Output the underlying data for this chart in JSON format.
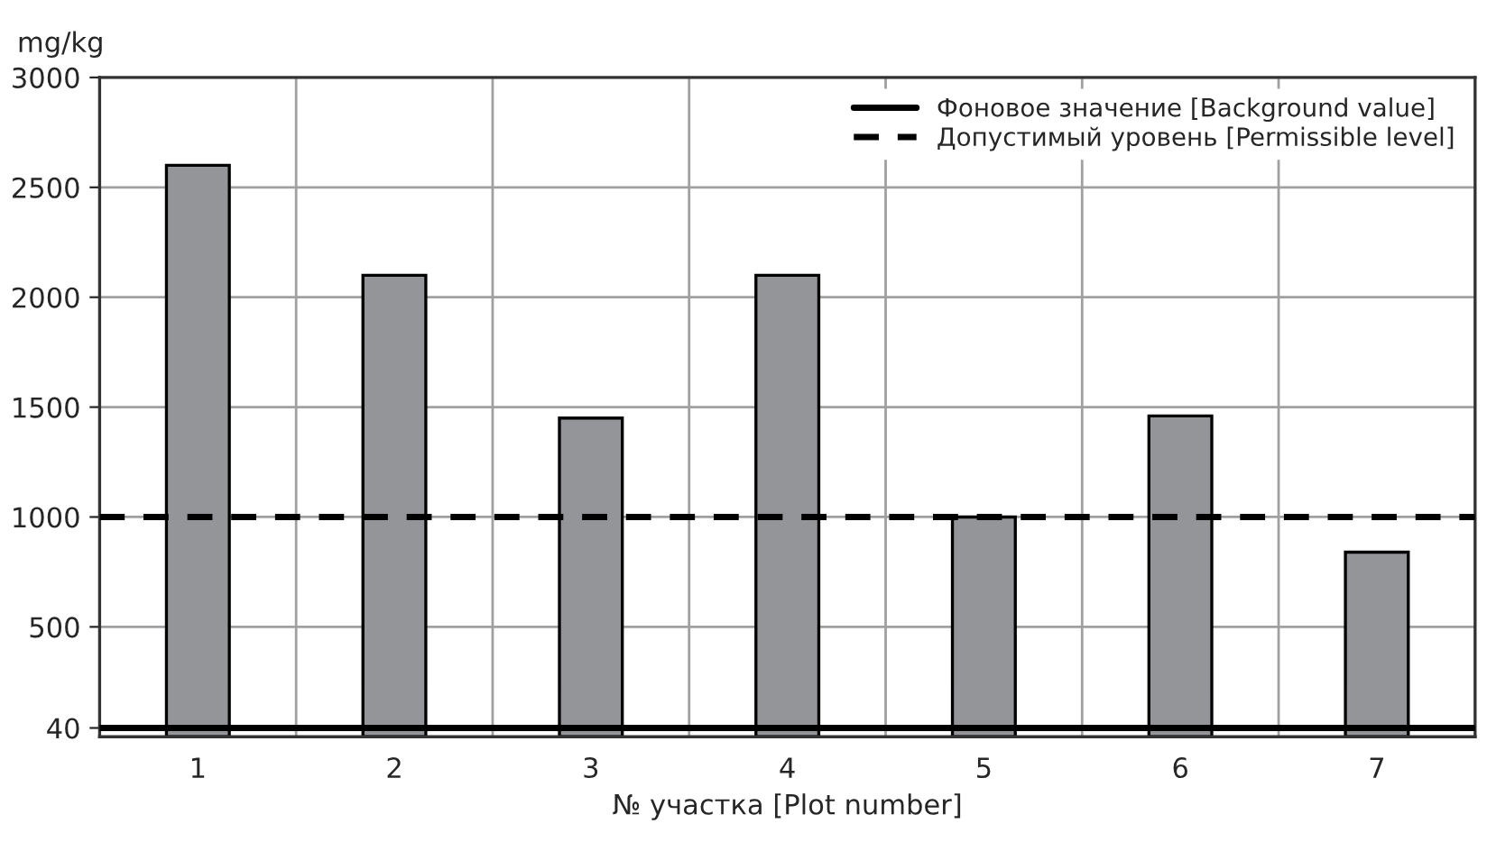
{
  "chart_data": {
    "type": "bar",
    "ylabel": "mg/kg",
    "xlabel": "№ участка [Plot number]",
    "categories": [
      "1",
      "2",
      "3",
      "4",
      "5",
      "6",
      "7"
    ],
    "values": [
      2600,
      2100,
      1450,
      2100,
      1000,
      1460,
      840
    ],
    "color": "#939598",
    "ylim": [
      0,
      3000
    ],
    "yticks": [
      40,
      500,
      1000,
      1500,
      2000,
      2500,
      3000
    ],
    "grid": true,
    "legend": "top right",
    "ref_lines": [
      {
        "axis": "y",
        "value": 40,
        "label": "Фоновое значение [Background value]",
        "color": "#000000",
        "line_style": "solid"
      },
      {
        "axis": "y",
        "value": 1000,
        "label": "Допустимый уровень [Permissible level]",
        "color": "#000000",
        "line_style": "dashed"
      }
    ]
  }
}
